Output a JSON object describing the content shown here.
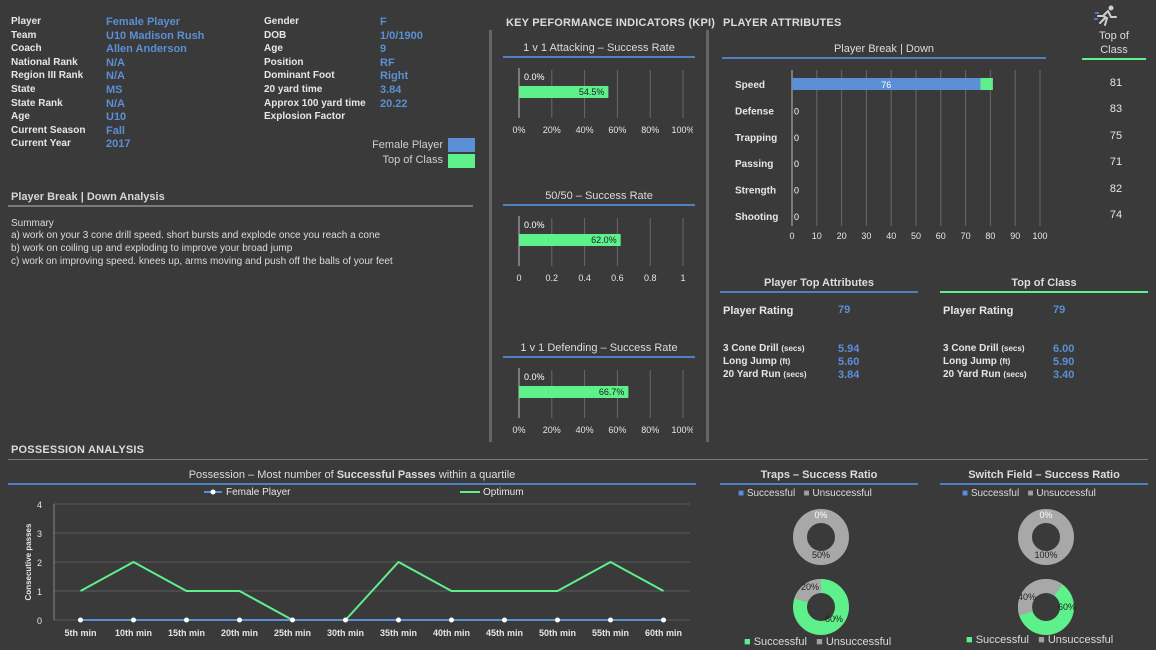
{
  "profile": {
    "left": [
      {
        "label": "Player",
        "value": "Female Player"
      },
      {
        "label": "Team",
        "value": "U10 Madison Rush"
      },
      {
        "label": "Coach",
        "value": "Allen Anderson"
      },
      {
        "label": "National Rank",
        "value": "N/A"
      },
      {
        "label": "Region III Rank",
        "value": "N/A"
      },
      {
        "label": "State",
        "value": "MS"
      },
      {
        "label": "State Rank",
        "value": "N/A"
      },
      {
        "label": "Age",
        "value": "U10"
      },
      {
        "label": "Current Season",
        "value": "Fall"
      },
      {
        "label": "Current Year",
        "value": "2017"
      }
    ],
    "right": [
      {
        "label": "Gender",
        "value": "F"
      },
      {
        "label": "DOB",
        "value": "1/0/1900"
      },
      {
        "label": "Age",
        "value": "9"
      },
      {
        "label": "Position",
        "value": "RF"
      },
      {
        "label": "Dominant Foot",
        "value": "Right"
      },
      {
        "label": "20 yard time",
        "value": "3.84"
      },
      {
        "label": "Approx 100 yard time",
        "value": "20.22"
      },
      {
        "label": "Explosion Factor",
        "value": ""
      }
    ],
    "legend": [
      {
        "label": "Female Player",
        "color": "#5b8fd6"
      },
      {
        "label": "Top of Class",
        "color": "#5ef08a"
      }
    ]
  },
  "analysis": {
    "title": "Player Break | Down Analysis",
    "summary_label": "Summary",
    "lines": [
      "a) work on your 3 cone drill speed.  short bursts and explode once you reach a cone",
      "b) work on coiling up and exploding to improve your broad jump",
      "c) work on improving speed.  knees up, arms moving and push off the balls of your feet"
    ]
  },
  "kpi": {
    "header": "KEY PEFORMANCE INDICATORS (KPI)",
    "charts": [
      {
        "title": "1 v 1 Attacking – Success Rate",
        "top_label": "0.0%",
        "bar_label": "54.5%",
        "value": 0.545,
        "ticks": [
          "0%",
          "20%",
          "40%",
          "60%",
          "80%",
          "100%"
        ]
      },
      {
        "title": "50/50 – Success Rate",
        "top_label": "0.0%",
        "bar_label": "62.0%",
        "value": 0.62,
        "ticks": [
          "0",
          "0.2",
          "0.4",
          "0.6",
          "0.8",
          "1"
        ]
      },
      {
        "title": "1 v 1 Defending – Success Rate",
        "top_label": "0.0%",
        "bar_label": "66.7%",
        "value": 0.667,
        "ticks": [
          "0%",
          "20%",
          "40%",
          "60%",
          "80%",
          "100%"
        ]
      }
    ]
  },
  "attributes": {
    "header": "PLAYER ATTRIBUTES",
    "chart_title": "Player Break | Down",
    "top_class_header": "Top of Class",
    "rows": [
      {
        "name": "Speed",
        "player": 76,
        "player_label": "76",
        "top": 81
      },
      {
        "name": "Defense",
        "player": 0,
        "player_label": "0",
        "top": 83
      },
      {
        "name": "Trapping",
        "player": 0,
        "player_label": "0",
        "top": 75
      },
      {
        "name": "Passing",
        "player": 0,
        "player_label": "0",
        "top": 71
      },
      {
        "name": "Strength",
        "player": 0,
        "player_label": "0",
        "top": 82
      },
      {
        "name": "Shooting",
        "player": 0,
        "player_label": "0",
        "top": 74
      }
    ],
    "ticks": [
      "0",
      "10",
      "20",
      "30",
      "40",
      "50",
      "60",
      "70",
      "80",
      "90",
      "100"
    ]
  },
  "top_attributes": {
    "title": "Player Top Attributes",
    "rating_label": "Player Rating",
    "rating": "79",
    "drills": [
      {
        "label": "3 Cone Drill",
        "unit": "(secs)",
        "value": "5.94"
      },
      {
        "label": "Long Jump",
        "unit": "(ft)",
        "value": "5.60"
      },
      {
        "label": "20 Yard Run",
        "unit": "(secs)",
        "value": "3.84"
      }
    ]
  },
  "top_class": {
    "title": "Top of Class",
    "rating_label": "Player Rating",
    "rating": "79",
    "drills": [
      {
        "label": "3 Cone Drill",
        "unit": "(secs)",
        "value": "6.00"
      },
      {
        "label": "Long Jump",
        "unit": "(ft)",
        "value": "5.90"
      },
      {
        "label": "20 Yard Run",
        "unit": "(secs)",
        "value": "3.40"
      }
    ]
  },
  "possession": {
    "header": "POSSESSION ANALYSIS",
    "title_pre": "Possession – Most number of ",
    "title_bold": "Successful Passes",
    "title_post": " within a quartile",
    "ylabel": "Consecutive passes"
  },
  "traps": {
    "title": "Traps – Success Ratio",
    "legend": [
      "Successful",
      "Unsuccessful"
    ],
    "donut1": {
      "top": "0%",
      "bottom": "50%"
    },
    "donut2": {
      "left": "20%",
      "right": "80%"
    }
  },
  "switch": {
    "title": "Switch Field – Success Ratio",
    "legend": [
      "Successful",
      "Unsuccessful"
    ],
    "donut1": {
      "top": "0%",
      "bottom": "100%"
    },
    "donut2": {
      "left": "40%",
      "right": "60%"
    }
  },
  "chart_data": {
    "type": "line",
    "title": "Possession – Most number of Successful Passes within a quartile",
    "ylabel": "Consecutive passes",
    "xlabel": "",
    "x": [
      "5th min",
      "10th min",
      "15th min",
      "20th min",
      "25th min",
      "30th min",
      "35th min",
      "40th min",
      "45th min",
      "50th min",
      "55th min",
      "60th min"
    ],
    "ylim": [
      0,
      4
    ],
    "yticks": [
      "0",
      "1",
      "2",
      "3",
      "4"
    ],
    "legend": "top",
    "series": [
      {
        "name": "Female Player",
        "values": [
          0,
          0,
          0,
          0,
          0,
          0,
          0,
          0,
          0,
          0,
          0,
          0
        ],
        "color": "#5b8fd6"
      },
      {
        "name": "Optimum",
        "values": [
          1,
          2,
          1,
          1,
          0,
          0,
          2,
          1,
          1,
          1,
          2,
          1
        ],
        "color": "#5ef08a"
      }
    ]
  }
}
